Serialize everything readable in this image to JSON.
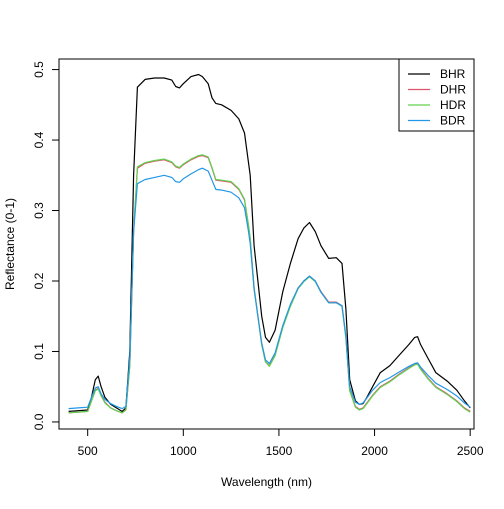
{
  "chart_data": {
    "type": "line",
    "title": "",
    "xlabel": "Wavelength (nm)",
    "ylabel": "Reflectance (0-1)",
    "xlim": [
      350,
      2520
    ],
    "ylim": [
      -0.01,
      0.515
    ],
    "x_ticks": [
      500,
      1000,
      1500,
      2000,
      2500
    ],
    "x_tick_labels": [
      "500",
      "1000",
      "1500",
      "2000",
      "2500"
    ],
    "y_ticks": [
      0.0,
      0.1,
      0.2,
      0.3,
      0.4,
      0.5
    ],
    "y_tick_labels": [
      "0.0",
      "0.1",
      "0.2",
      "0.3",
      "0.4",
      "0.5"
    ],
    "grid": false,
    "legend_position": "top-right",
    "series": [
      {
        "name": "BHR",
        "color": "#000000",
        "x": [
          400,
          450,
          500,
          520,
          540,
          555,
          570,
          590,
          620,
          650,
          680,
          700,
          720,
          740,
          760,
          800,
          850,
          900,
          940,
          960,
          980,
          1000,
          1040,
          1080,
          1100,
          1130,
          1150,
          1170,
          1200,
          1250,
          1290,
          1320,
          1340,
          1350,
          1370,
          1390,
          1410,
          1430,
          1450,
          1480,
          1520,
          1560,
          1600,
          1630,
          1660,
          1690,
          1720,
          1760,
          1800,
          1830,
          1850,
          1870,
          1900,
          1920,
          1940,
          1960,
          1990,
          2030,
          2080,
          2130,
          2180,
          2210,
          2225,
          2240,
          2280,
          2320,
          2380,
          2430,
          2470,
          2500
        ],
        "y": [
          0.015,
          0.016,
          0.017,
          0.035,
          0.06,
          0.065,
          0.05,
          0.035,
          0.025,
          0.02,
          0.015,
          0.02,
          0.1,
          0.35,
          0.475,
          0.486,
          0.488,
          0.488,
          0.485,
          0.476,
          0.474,
          0.48,
          0.49,
          0.493,
          0.49,
          0.48,
          0.46,
          0.452,
          0.45,
          0.442,
          0.43,
          0.41,
          0.37,
          0.35,
          0.25,
          0.2,
          0.15,
          0.12,
          0.113,
          0.13,
          0.185,
          0.225,
          0.26,
          0.275,
          0.283,
          0.27,
          0.25,
          0.232,
          0.233,
          0.225,
          0.16,
          0.06,
          0.03,
          0.025,
          0.026,
          0.035,
          0.05,
          0.07,
          0.08,
          0.095,
          0.11,
          0.12,
          0.121,
          0.11,
          0.09,
          0.07,
          0.058,
          0.045,
          0.03,
          0.02
        ]
      },
      {
        "name": "DHR",
        "color": "#df536b",
        "x": [
          400,
          450,
          500,
          520,
          540,
          555,
          570,
          590,
          620,
          650,
          680,
          700,
          720,
          740,
          760,
          800,
          850,
          900,
          940,
          960,
          980,
          1000,
          1040,
          1080,
          1100,
          1130,
          1150,
          1170,
          1200,
          1250,
          1290,
          1320,
          1340,
          1350,
          1370,
          1390,
          1410,
          1430,
          1450,
          1480,
          1520,
          1560,
          1600,
          1630,
          1660,
          1690,
          1720,
          1760,
          1800,
          1830,
          1850,
          1870,
          1900,
          1920,
          1940,
          1960,
          1990,
          2030,
          2080,
          2130,
          2180,
          2210,
          2225,
          2240,
          2280,
          2320,
          2380,
          2430,
          2470,
          2500
        ],
        "y": [
          0.013,
          0.014,
          0.015,
          0.03,
          0.045,
          0.048,
          0.038,
          0.028,
          0.02,
          0.016,
          0.013,
          0.017,
          0.08,
          0.27,
          0.36,
          0.367,
          0.37,
          0.372,
          0.368,
          0.362,
          0.36,
          0.365,
          0.372,
          0.377,
          0.378,
          0.375,
          0.36,
          0.343,
          0.342,
          0.34,
          0.33,
          0.315,
          0.28,
          0.26,
          0.19,
          0.15,
          0.11,
          0.085,
          0.08,
          0.095,
          0.135,
          0.165,
          0.19,
          0.2,
          0.207,
          0.2,
          0.185,
          0.17,
          0.17,
          0.165,
          0.12,
          0.045,
          0.022,
          0.018,
          0.02,
          0.027,
          0.038,
          0.05,
          0.058,
          0.068,
          0.077,
          0.082,
          0.083,
          0.076,
          0.062,
          0.05,
          0.04,
          0.03,
          0.02,
          0.015
        ]
      },
      {
        "name": "HDR",
        "color": "#61d04f",
        "x": [
          400,
          450,
          500,
          520,
          540,
          555,
          570,
          590,
          620,
          650,
          680,
          700,
          720,
          740,
          760,
          800,
          850,
          900,
          940,
          960,
          980,
          1000,
          1040,
          1080,
          1100,
          1130,
          1150,
          1170,
          1200,
          1250,
          1290,
          1320,
          1340,
          1350,
          1370,
          1390,
          1410,
          1430,
          1450,
          1480,
          1520,
          1560,
          1600,
          1630,
          1660,
          1690,
          1720,
          1760,
          1800,
          1830,
          1850,
          1870,
          1900,
          1920,
          1940,
          1960,
          1990,
          2030,
          2080,
          2130,
          2180,
          2210,
          2225,
          2240,
          2280,
          2320,
          2380,
          2430,
          2470,
          2500
        ],
        "y": [
          0.013,
          0.014,
          0.015,
          0.03,
          0.044,
          0.047,
          0.037,
          0.027,
          0.02,
          0.016,
          0.013,
          0.017,
          0.08,
          0.27,
          0.362,
          0.368,
          0.371,
          0.373,
          0.369,
          0.363,
          0.361,
          0.366,
          0.373,
          0.378,
          0.379,
          0.376,
          0.361,
          0.344,
          0.343,
          0.341,
          0.331,
          0.316,
          0.281,
          0.261,
          0.19,
          0.15,
          0.11,
          0.085,
          0.079,
          0.094,
          0.134,
          0.164,
          0.189,
          0.199,
          0.206,
          0.199,
          0.184,
          0.169,
          0.169,
          0.164,
          0.119,
          0.044,
          0.021,
          0.017,
          0.019,
          0.026,
          0.037,
          0.049,
          0.057,
          0.067,
          0.076,
          0.081,
          0.082,
          0.075,
          0.061,
          0.049,
          0.039,
          0.029,
          0.019,
          0.014
        ]
      },
      {
        "name": "BDR",
        "color": "#2297e6",
        "x": [
          400,
          450,
          500,
          520,
          540,
          555,
          570,
          590,
          620,
          650,
          680,
          700,
          720,
          740,
          760,
          800,
          850,
          900,
          940,
          960,
          980,
          1000,
          1040,
          1080,
          1100,
          1130,
          1150,
          1170,
          1200,
          1250,
          1290,
          1320,
          1340,
          1350,
          1370,
          1390,
          1410,
          1430,
          1450,
          1480,
          1520,
          1560,
          1600,
          1630,
          1660,
          1690,
          1720,
          1760,
          1800,
          1830,
          1850,
          1870,
          1900,
          1920,
          1940,
          1960,
          1990,
          2030,
          2080,
          2130,
          2180,
          2210,
          2225,
          2240,
          2280,
          2320,
          2380,
          2430,
          2470,
          2500
        ],
        "y": [
          0.019,
          0.02,
          0.021,
          0.035,
          0.048,
          0.05,
          0.04,
          0.032,
          0.026,
          0.022,
          0.019,
          0.022,
          0.09,
          0.27,
          0.338,
          0.344,
          0.347,
          0.35,
          0.347,
          0.341,
          0.34,
          0.345,
          0.352,
          0.358,
          0.36,
          0.356,
          0.343,
          0.33,
          0.329,
          0.326,
          0.318,
          0.304,
          0.272,
          0.253,
          0.188,
          0.15,
          0.112,
          0.088,
          0.083,
          0.098,
          0.137,
          0.167,
          0.19,
          0.2,
          0.207,
          0.2,
          0.184,
          0.169,
          0.169,
          0.165,
          0.122,
          0.05,
          0.028,
          0.025,
          0.027,
          0.034,
          0.045,
          0.056,
          0.063,
          0.071,
          0.079,
          0.083,
          0.084,
          0.078,
          0.066,
          0.055,
          0.046,
          0.037,
          0.027,
          0.021
        ]
      }
    ]
  }
}
